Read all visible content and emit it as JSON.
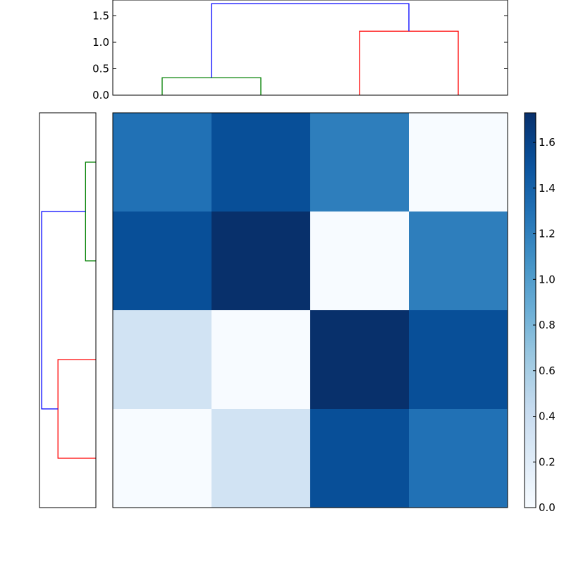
{
  "chart_data": [
    {
      "type": "dendrogram",
      "name": "column-dendrogram",
      "orientation": "top",
      "leaves": 4,
      "ylim": [
        0,
        1.8
      ],
      "yticks": [
        0.0,
        0.5,
        1.0,
        1.5
      ],
      "ytick_labels": [
        "0.0",
        "0.5",
        "1.0",
        "1.5"
      ],
      "links": [
        {
          "left": 0.5,
          "right": 1.5,
          "height": 0.33,
          "left_base": 0,
          "right_base": 0,
          "color": "#008000"
        },
        {
          "left": 2.5,
          "right": 3.5,
          "height": 1.21,
          "left_base": 0,
          "right_base": 0,
          "color": "#ff0000"
        },
        {
          "left": 1.0,
          "right": 3.0,
          "height": 1.73,
          "left_base": 0.33,
          "right_base": 1.21,
          "color": "#0000ff"
        }
      ]
    },
    {
      "type": "dendrogram",
      "name": "row-dendrogram",
      "orientation": "left",
      "leaves": 4,
      "xlim": [
        0,
        1.8
      ],
      "links": [
        {
          "left": 0.5,
          "right": 1.5,
          "height": 0.33,
          "left_base": 0,
          "right_base": 0,
          "color": "#008000"
        },
        {
          "left": 2.5,
          "right": 3.5,
          "height": 1.21,
          "left_base": 0,
          "right_base": 0,
          "color": "#ff0000"
        },
        {
          "left": 1.0,
          "right": 3.0,
          "height": 1.73,
          "left_base": 0.33,
          "right_base": 1.21,
          "color": "#0000ff"
        }
      ]
    },
    {
      "type": "heatmap",
      "name": "distance-matrix",
      "colormap": "Blues",
      "vmin": 0,
      "vmax": 1.73,
      "values": [
        [
          1.3,
          1.53,
          1.21,
          0.0
        ],
        [
          1.53,
          1.73,
          0.0,
          1.21
        ],
        [
          0.33,
          0.0,
          1.73,
          1.53
        ],
        [
          0.0,
          0.33,
          1.53,
          1.3
        ]
      ]
    },
    {
      "type": "colorbar",
      "name": "colorbar",
      "colormap": "Blues",
      "vmin": 0,
      "vmax": 1.73,
      "ticks": [
        0.0,
        0.2,
        0.4,
        0.6,
        0.8,
        1.0,
        1.2,
        1.4,
        1.6
      ],
      "tick_labels": [
        "0.0",
        "0.2",
        "0.4",
        "0.6",
        "0.8",
        "1.0",
        "1.2",
        "1.4",
        "1.6"
      ]
    }
  ]
}
